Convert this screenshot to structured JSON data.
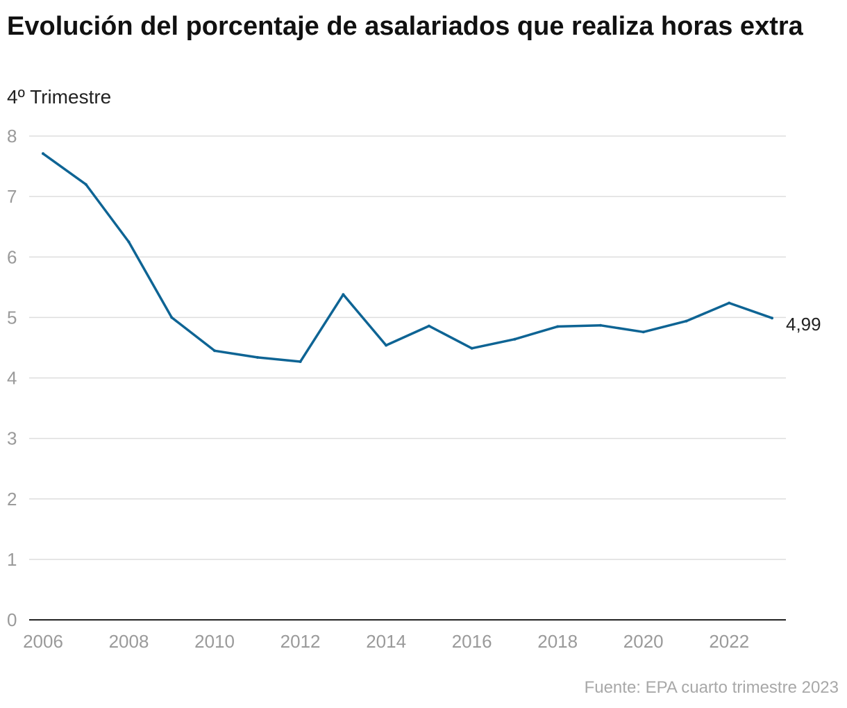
{
  "title": "Evolución del porcentaje de asalariados que realiza horas extra",
  "subtitle": "4º Trimestre",
  "source": "Fuente: EPA cuarto trimestre 2023",
  "colors": {
    "line": "#0e6494",
    "grid": "#dddddd",
    "axis": "#222222",
    "tick": "#9a9a9a"
  },
  "chart_data": {
    "type": "line",
    "title": "Evolución del porcentaje de asalariados que realiza horas extra",
    "subtitle": "4º Trimestre",
    "xlabel": "",
    "ylabel": "",
    "x": [
      2006,
      2007,
      2008,
      2009,
      2010,
      2011,
      2012,
      2013,
      2014,
      2015,
      2016,
      2017,
      2018,
      2019,
      2020,
      2021,
      2022,
      2023
    ],
    "series": [
      {
        "values": [
          7.71,
          7.2,
          6.25,
          5.0,
          4.45,
          4.34,
          4.27,
          5.38,
          4.54,
          4.86,
          4.49,
          4.64,
          4.85,
          4.87,
          4.76,
          4.94,
          5.24,
          4.99
        ]
      }
    ],
    "xticks": [
      2006,
      2008,
      2010,
      2012,
      2014,
      2016,
      2018,
      2020,
      2022
    ],
    "yticks": [
      0,
      1,
      2,
      3,
      4,
      5,
      6,
      7,
      8
    ],
    "xlim": [
      2006,
      2023
    ],
    "ylim": [
      0,
      8
    ],
    "grid": true,
    "end_label": "4,99"
  }
}
